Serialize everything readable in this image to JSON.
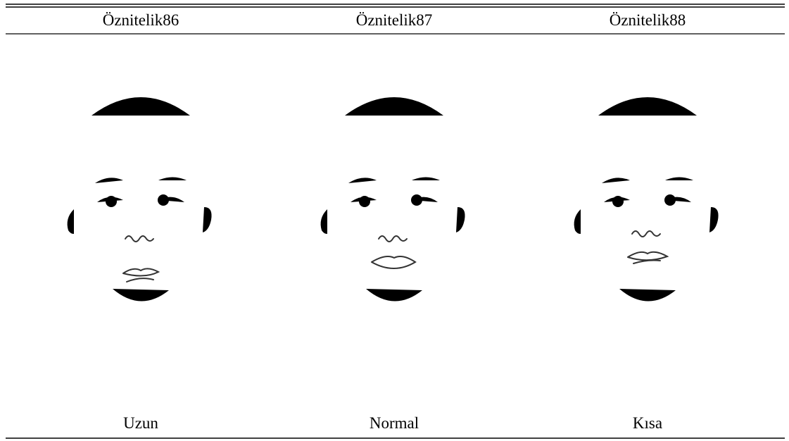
{
  "table": {
    "header": [
      "Öznitelik86",
      "Öznitelik87",
      "Öznitelik88"
    ],
    "captions": [
      "Uzun",
      "Normal",
      "Kısa"
    ]
  }
}
